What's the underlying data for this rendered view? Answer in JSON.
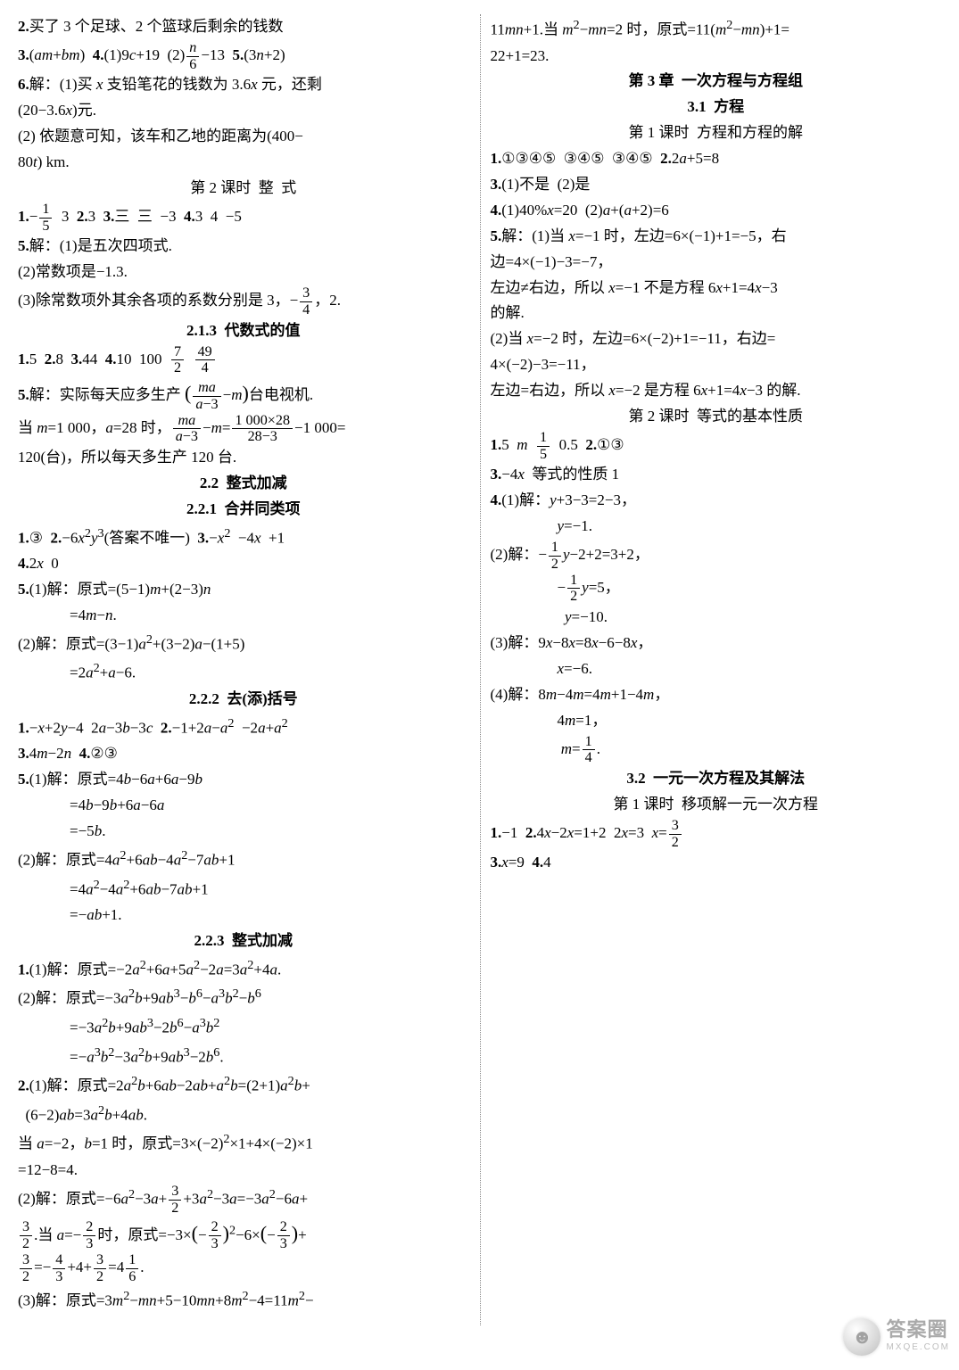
{
  "lines": [
    {
      "cls": "line",
      "html": "<b>2.</b>买了 3 个足球、2 个篮球后剩余的钱数"
    },
    {
      "cls": "line",
      "html": "<b>3.</b>(<i>am</i>+<i>bm</i>)&nbsp;&nbsp;<b>4.</b>(1)9<i>c</i>+19&nbsp;&nbsp;(2)<span class='frac'><span class='num'><i>n</i></span><span class='den'>6</span></span>−13&nbsp;&nbsp;<b>5.</b>(3<i>n</i>+2)"
    },
    {
      "cls": "line",
      "html": "<b>6.</b>解：(1)买 <i>x</i> 支铅笔花的钱数为 3.6<i>x</i> 元，还剩"
    },
    {
      "cls": "line",
      "html": "(20−3.6<i>x</i>)元."
    },
    {
      "cls": "line",
      "html": "(2) 依题意可知，该车和乙地的距离为(400−"
    },
    {
      "cls": "line",
      "html": "80<i>t</i>) km."
    },
    {
      "cls": "line center-plain",
      "html": "第 2 课时&nbsp;&nbsp;整&nbsp;&nbsp;式"
    },
    {
      "cls": "line",
      "html": "<b>1.</b>−<span class='frac'><span class='num'>1</span><span class='den'>5</span></span>&nbsp;&nbsp;3&nbsp;&nbsp;<b>2.</b>3&nbsp;&nbsp;<b>3.</b>三&nbsp;&nbsp;三&nbsp;&nbsp;−3&nbsp;&nbsp;<b>4.</b>3&nbsp;&nbsp;4&nbsp;&nbsp;−5"
    },
    {
      "cls": "line",
      "html": "<b>5.</b>解：(1)是五次四项式."
    },
    {
      "cls": "line",
      "html": "(2)常数项是−1.3."
    },
    {
      "cls": "line",
      "html": "(3)除常数项外其余各项的系数分别是 3，−<span class='frac'><span class='num'>3</span><span class='den'>4</span></span>，2."
    },
    {
      "cls": "line center",
      "html": "2.1.3&nbsp;&nbsp;代数式的值"
    },
    {
      "cls": "line",
      "html": "<b>1.</b>5&nbsp;&nbsp;<b>2.</b>8&nbsp;&nbsp;<b>3.</b>44&nbsp;&nbsp;<b>4.</b>10&nbsp;&nbsp;100&nbsp;&nbsp;<span class='frac'><span class='num'>7</span><span class='den'>2</span></span>&nbsp;&nbsp;<span class='frac'><span class='num'>49</span><span class='den'>4</span></span>"
    },
    {
      "cls": "line",
      "html": "<b>5.</b>解：实际每天应多生产 <span style='font-size:1.3em'>(</span><span class='frac'><span class='num'><i>ma</i></span><span class='den'><i>a</i>−3</span></span>−<i>m</i><span style='font-size:1.3em'>)</span>台电视机."
    },
    {
      "cls": "line",
      "html": "当 <i>m</i>=1 000，<i>a</i>=28 时，<span class='frac'><span class='num'><i>ma</i></span><span class='den'><i>a</i>−3</span></span>−<i>m</i>=<span class='frac'><span class='num'>1 000×28</span><span class='den'>28−3</span></span>−1 000="
    },
    {
      "cls": "line",
      "html": "120(台)，所以每天多生产 120 台."
    },
    {
      "cls": "line center",
      "html": "2.2&nbsp;&nbsp;整式加减"
    },
    {
      "cls": "line center",
      "html": "2.2.1&nbsp;&nbsp;合并同类项"
    },
    {
      "cls": "line",
      "html": "<b>1.</b>③&nbsp;&nbsp;<b>2.</b>−6<i>x</i><sup>2</sup><i>y</i><sup>3</sup>(答案不唯一)&nbsp;&nbsp;<b>3.</b>−<i>x</i><sup>2</sup>&nbsp;&nbsp;−4<i>x</i>&nbsp;&nbsp;+1"
    },
    {
      "cls": "line",
      "html": "<b>4.</b>2<i>x</i>&nbsp;&nbsp;0"
    },
    {
      "cls": "line",
      "html": "<b>5.</b>(1)解：原式=(5−1)<i>m</i>+(2−3)<i>n</i>"
    },
    {
      "cls": "line indent",
      "html": "=4<i>m</i>−<i>n</i>."
    },
    {
      "cls": "line",
      "html": "(2)解：原式=(3−1)<i>a</i><sup>2</sup>+(3−2)<i>a</i>−(1+5)"
    },
    {
      "cls": "line indent",
      "html": "=2<i>a</i><sup>2</sup>+<i>a</i>−6."
    },
    {
      "cls": "line center",
      "html": "2.2.2&nbsp;&nbsp;去(添)括号"
    },
    {
      "cls": "line",
      "html": "<b>1.</b>−<i>x</i>+2<i>y</i>−4&nbsp;&nbsp;2<i>a</i>−3<i>b</i>−3<i>c</i>&nbsp;&nbsp;<b>2.</b>−1+2<i>a</i>−<i>a</i><sup>2</sup>&nbsp;&nbsp;−2<i>a</i>+<i>a</i><sup>2</sup>"
    },
    {
      "cls": "line",
      "html": "<b>3.</b>4<i>m</i>−2<i>n</i>&nbsp;&nbsp;<b>4.</b>②③"
    },
    {
      "cls": "line",
      "html": "<b>5.</b>(1)解：原式=4<i>b</i>−6<i>a</i>+6<i>a</i>−9<i>b</i>"
    },
    {
      "cls": "line indent",
      "html": "=4<i>b</i>−9<i>b</i>+6<i>a</i>−6<i>a</i>"
    },
    {
      "cls": "line indent",
      "html": "=−5<i>b</i>."
    },
    {
      "cls": "line",
      "html": "(2)解：原式=4<i>a</i><sup>2</sup>+6<i>ab</i>−4<i>a</i><sup>2</sup>−7<i>ab</i>+1"
    },
    {
      "cls": "line indent",
      "html": "=4<i>a</i><sup>2</sup>−4<i>a</i><sup>2</sup>+6<i>ab</i>−7<i>ab</i>+1"
    },
    {
      "cls": "line indent",
      "html": "=−<i>ab</i>+1."
    },
    {
      "cls": "line center",
      "html": "2.2.3&nbsp;&nbsp;整式加减"
    },
    {
      "cls": "line",
      "html": "<b>1.</b>(1)解：原式=−2<i>a</i><sup>2</sup>+6<i>a</i>+5<i>a</i><sup>2</sup>−2<i>a</i>=3<i>a</i><sup>2</sup>+4<i>a</i>."
    },
    {
      "cls": "line",
      "html": "(2)解：原式=−3<i>a</i><sup>2</sup><i>b</i>+9<i>ab</i><sup>3</sup>−<i>b</i><sup>6</sup>−<i>a</i><sup>3</sup><i>b</i><sup>2</sup>−<i>b</i><sup>6</sup>"
    },
    {
      "cls": "line indent",
      "html": "=−3<i>a</i><sup>2</sup><i>b</i>+9<i>ab</i><sup>3</sup>−2<i>b</i><sup>6</sup>−<i>a</i><sup>3</sup><i>b</i><sup>2</sup>"
    },
    {
      "cls": "line indent",
      "html": "=−<i>a</i><sup>3</sup><i>b</i><sup>2</sup>−3<i>a</i><sup>2</sup><i>b</i>+9<i>ab</i><sup>3</sup>−2<i>b</i><sup>6</sup>."
    },
    {
      "cls": "line",
      "html": "<b>2.</b>(1)解：原式=2<i>a</i><sup>2</sup><i>b</i>+6<i>ab</i>−2<i>ab</i>+<i>a</i><sup>2</sup><i>b</i>=(2+1)<i>a</i><sup>2</sup><i>b</i>+"
    },
    {
      "cls": "line",
      "html": "&nbsp;&nbsp;(6−2)<i>ab</i>=3<i>a</i><sup>2</sup><i>b</i>+4<i>ab</i>."
    },
    {
      "cls": "line",
      "html": "当 <i>a</i>=−2，<i>b</i>=1 时，原式=3×(−2)<sup>2</sup>×1+4×(−2)×1"
    },
    {
      "cls": "line",
      "html": "=12−8=4."
    },
    {
      "cls": "line",
      "html": "(2)解：原式=−6<i>a</i><sup>2</sup>−3<i>a</i>+<span class='frac'><span class='num'>3</span><span class='den'>2</span></span>+3<i>a</i><sup>2</sup>−3<i>a</i>=−3<i>a</i><sup>2</sup>−6<i>a</i>+"
    },
    {
      "cls": "line",
      "html": "<span class='frac'><span class='num'>3</span><span class='den'>2</span></span>.当 <i>a</i>=−<span class='frac'><span class='num'>2</span><span class='den'>3</span></span>时，原式=−3×<span style='font-size:1.3em'>(</span>−<span class='frac'><span class='num'>2</span><span class='den'>3</span></span><span style='font-size:1.3em'>)</span><sup>2</sup>−6×<span style='font-size:1.3em'>(</span>−<span class='frac'><span class='num'>2</span><span class='den'>3</span></span><span style='font-size:1.3em'>)</span>+"
    },
    {
      "cls": "line",
      "html": "<span class='frac'><span class='num'>3</span><span class='den'>2</span></span>=−<span class='frac'><span class='num'>4</span><span class='den'>3</span></span>+4+<span class='frac'><span class='num'>3</span><span class='den'>2</span></span>=4<span class='frac'><span class='num'>1</span><span class='den'>6</span></span>."
    },
    {
      "cls": "line",
      "html": "(3)解：原式=3<i>m</i><sup>2</sup>−<i>mn</i>+5−10<i>mn</i>+8<i>m</i><sup>2</sup>−4=11<i>m</i><sup>2</sup>−"
    },
    {
      "cls": "line",
      "html": "11<i>mn</i>+1.当 <i>m</i><sup>2</sup>−<i>mn</i>=2 时，原式=11(<i>m</i><sup>2</sup>−<i>mn</i>)+1="
    },
    {
      "cls": "line",
      "html": "22+1=23."
    },
    {
      "cls": "line center",
      "html": "第 3 章&nbsp;&nbsp;一次方程与方程组"
    },
    {
      "cls": "line center",
      "html": "3.1&nbsp;&nbsp;方程"
    },
    {
      "cls": "line center-plain",
      "html": "第 1 课时&nbsp;&nbsp;方程和方程的解"
    },
    {
      "cls": "line",
      "html": "<b>1.</b>①③④⑤&nbsp;&nbsp;③④⑤&nbsp;&nbsp;③④⑤&nbsp;&nbsp;<b>2.</b>2<i>a</i>+5=8"
    },
    {
      "cls": "line",
      "html": "<b>3.</b>(1)不是&nbsp;&nbsp;(2)是"
    },
    {
      "cls": "line",
      "html": "<b>4.</b>(1)40%<i>x</i>=20&nbsp;&nbsp;(2)<i>a</i>+(<i>a</i>+2)=6"
    },
    {
      "cls": "line",
      "html": "<b>5.</b>解：(1)当 <i>x</i>=−1 时，左边=6×(−1)+1=−5，右"
    },
    {
      "cls": "line",
      "html": "边=4×(−1)−3=−7，"
    },
    {
      "cls": "line",
      "html": "左边≠右边，所以 <i>x</i>=−1 不是方程 6<i>x</i>+1=4<i>x</i>−3"
    },
    {
      "cls": "line",
      "html": "的解."
    },
    {
      "cls": "line",
      "html": "(2)当 <i>x</i>=−2 时，左边=6×(−2)+1=−11，右边="
    },
    {
      "cls": "line",
      "html": "4×(−2)−3=−11，"
    },
    {
      "cls": "line",
      "html": "左边=右边，所以 <i>x</i>=−2 是方程 6<i>x</i>+1=4<i>x</i>−3 的解."
    },
    {
      "cls": "line center-plain",
      "html": "第 2 课时&nbsp;&nbsp;等式的基本性质"
    },
    {
      "cls": "line",
      "html": "<b>1.</b>5&nbsp;&nbsp;<i>m</i>&nbsp;&nbsp;<span class='frac'><span class='num'>1</span><span class='den'>5</span></span>&nbsp;&nbsp;0.5&nbsp;&nbsp;<b>2.</b>①③"
    },
    {
      "cls": "line",
      "html": "<b>3.</b>−4<i>x</i>&nbsp;&nbsp;等式的性质 1"
    },
    {
      "cls": "line",
      "html": "<b>4.</b>(1)解：<i>y</i>+3−3=2−3，"
    },
    {
      "cls": "line indent",
      "html": "&nbsp;&nbsp;&nbsp;&nbsp;<i>y</i>=−1."
    },
    {
      "cls": "line",
      "html": "(2)解：−<span class='frac'><span class='num'>1</span><span class='den'>2</span></span><i>y</i>−2+2=3+2，"
    },
    {
      "cls": "line indent",
      "html": "&nbsp;&nbsp;&nbsp;&nbsp;−<span class='frac'><span class='num'>1</span><span class='den'>2</span></span><i>y</i>=5，"
    },
    {
      "cls": "line indent",
      "html": "&nbsp;&nbsp;&nbsp;&nbsp;&nbsp;&nbsp;<i>y</i>=−10."
    },
    {
      "cls": "line",
      "html": "(3)解：9<i>x</i>−8<i>x</i>=8<i>x</i>−6−8<i>x</i>，"
    },
    {
      "cls": "line indent",
      "html": "&nbsp;&nbsp;&nbsp;&nbsp;<i>x</i>=−6."
    },
    {
      "cls": "line",
      "html": "(4)解：8<i>m</i>−4<i>m</i>=4<i>m</i>+1−4<i>m</i>，"
    },
    {
      "cls": "line indent",
      "html": "&nbsp;&nbsp;&nbsp;&nbsp;4<i>m</i>=1，"
    },
    {
      "cls": "line indent",
      "html": "&nbsp;&nbsp;&nbsp;&nbsp;&nbsp;<i>m</i>=<span class='frac'><span class='num'>1</span><span class='den'>4</span></span>."
    },
    {
      "cls": "line center",
      "html": "3.2&nbsp;&nbsp;一元一次方程及其解法"
    },
    {
      "cls": "line center-plain",
      "html": "第 1 课时&nbsp;&nbsp;移项解一元一次方程"
    },
    {
      "cls": "line",
      "html": "<b>1.</b>−1&nbsp;&nbsp;<b>2.</b>4<i>x</i>−2<i>x</i>=1+2&nbsp;&nbsp;2<i>x</i>=3&nbsp;&nbsp;<i>x</i>=<span class='frac'><span class='num'>3</span><span class='den'>2</span></span>"
    },
    {
      "cls": "line",
      "html": "<b>3.</b><i>x</i>=9&nbsp;&nbsp;<b>4.</b>4"
    }
  ],
  "watermark": {
    "main": "答案圈",
    "sub": "MXQE.COM",
    "icon": "☻"
  }
}
